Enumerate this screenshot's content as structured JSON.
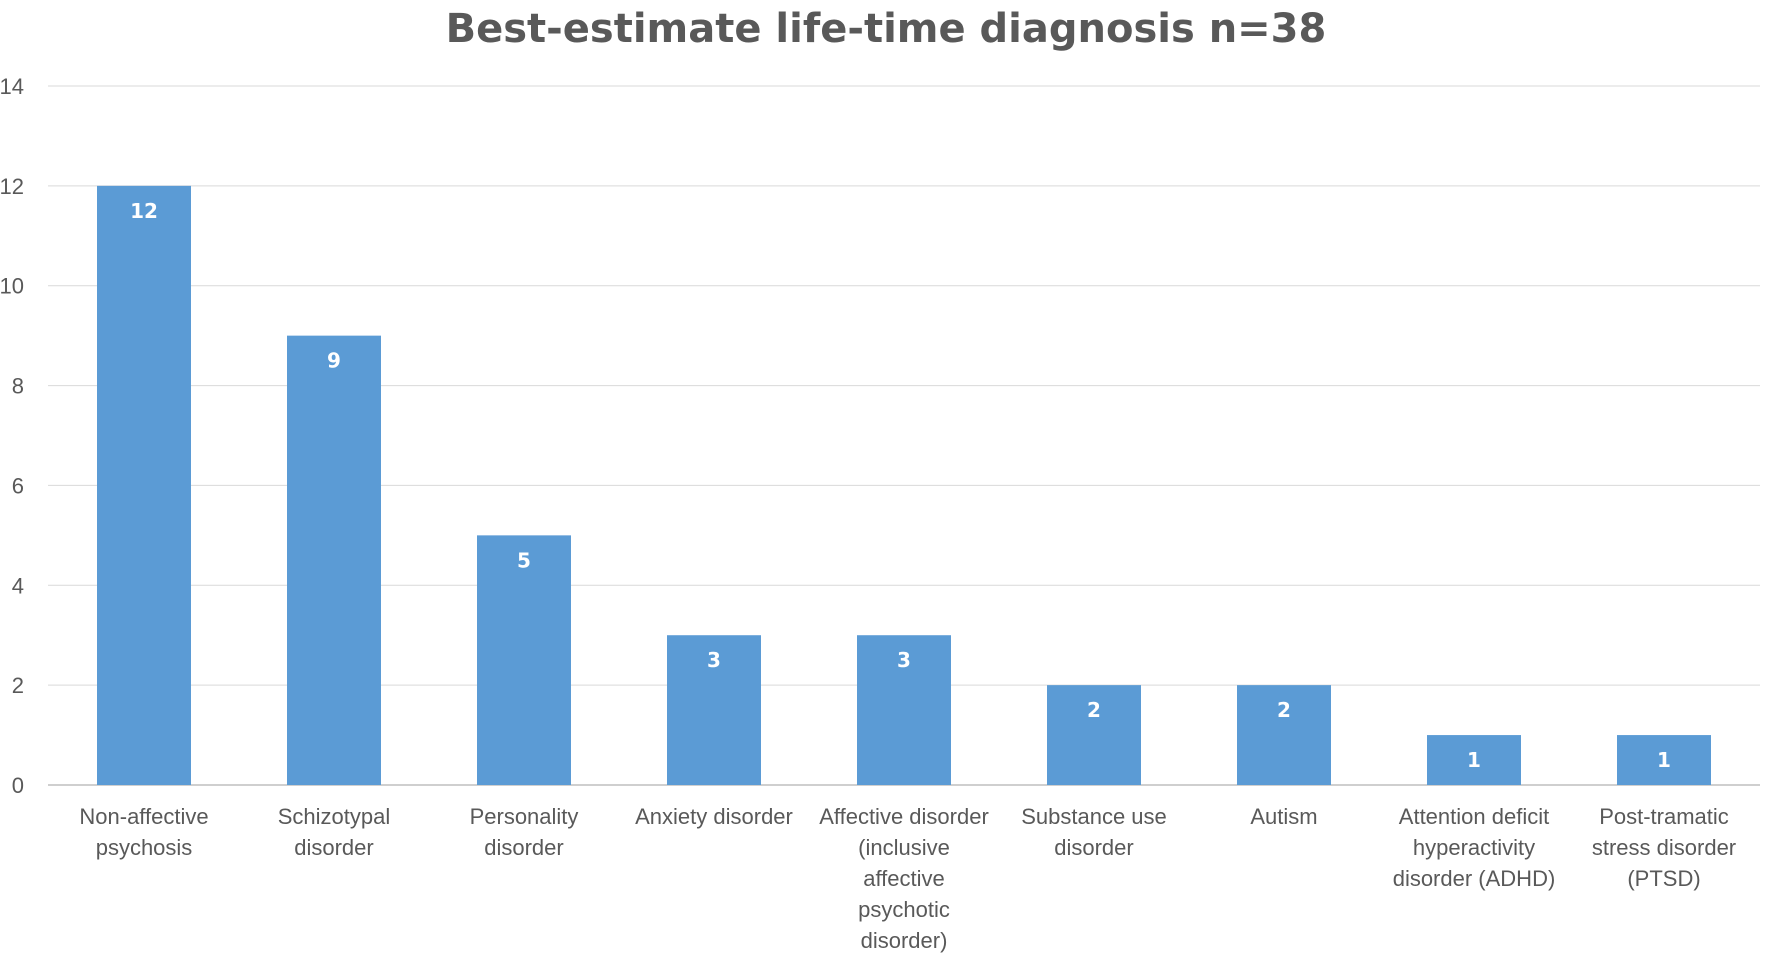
{
  "chart_data": {
    "type": "bar",
    "title": "Best-estimate life-time diagnosis n=38",
    "xlabel": "",
    "ylabel": "",
    "ylim": [
      0,
      14
    ],
    "yticks": [
      0,
      2,
      4,
      6,
      8,
      10,
      12,
      14
    ],
    "grid": true,
    "legend": "none",
    "bar_color": "#5b9bd5",
    "categories": [
      [
        "Non-affective",
        "psychosis"
      ],
      [
        "Schizotypal",
        "disorder"
      ],
      [
        "Personality",
        "disorder"
      ],
      [
        "Anxiety disorder"
      ],
      [
        "Affective disorder",
        "(inclusive",
        "affective",
        "psychotic",
        "disorder)"
      ],
      [
        "Substance use",
        "disorder"
      ],
      [
        "Autism"
      ],
      [
        "Attention deficit",
        "hyperactivity",
        "disorder (ADHD)"
      ],
      [
        "Post-tramatic",
        "stress disorder",
        "(PTSD)"
      ]
    ],
    "values": [
      12,
      9,
      5,
      3,
      3,
      2,
      2,
      1,
      1
    ],
    "data_labels": [
      "12",
      "9",
      "5",
      "3",
      "3",
      "2",
      "2",
      "1",
      "1"
    ]
  }
}
